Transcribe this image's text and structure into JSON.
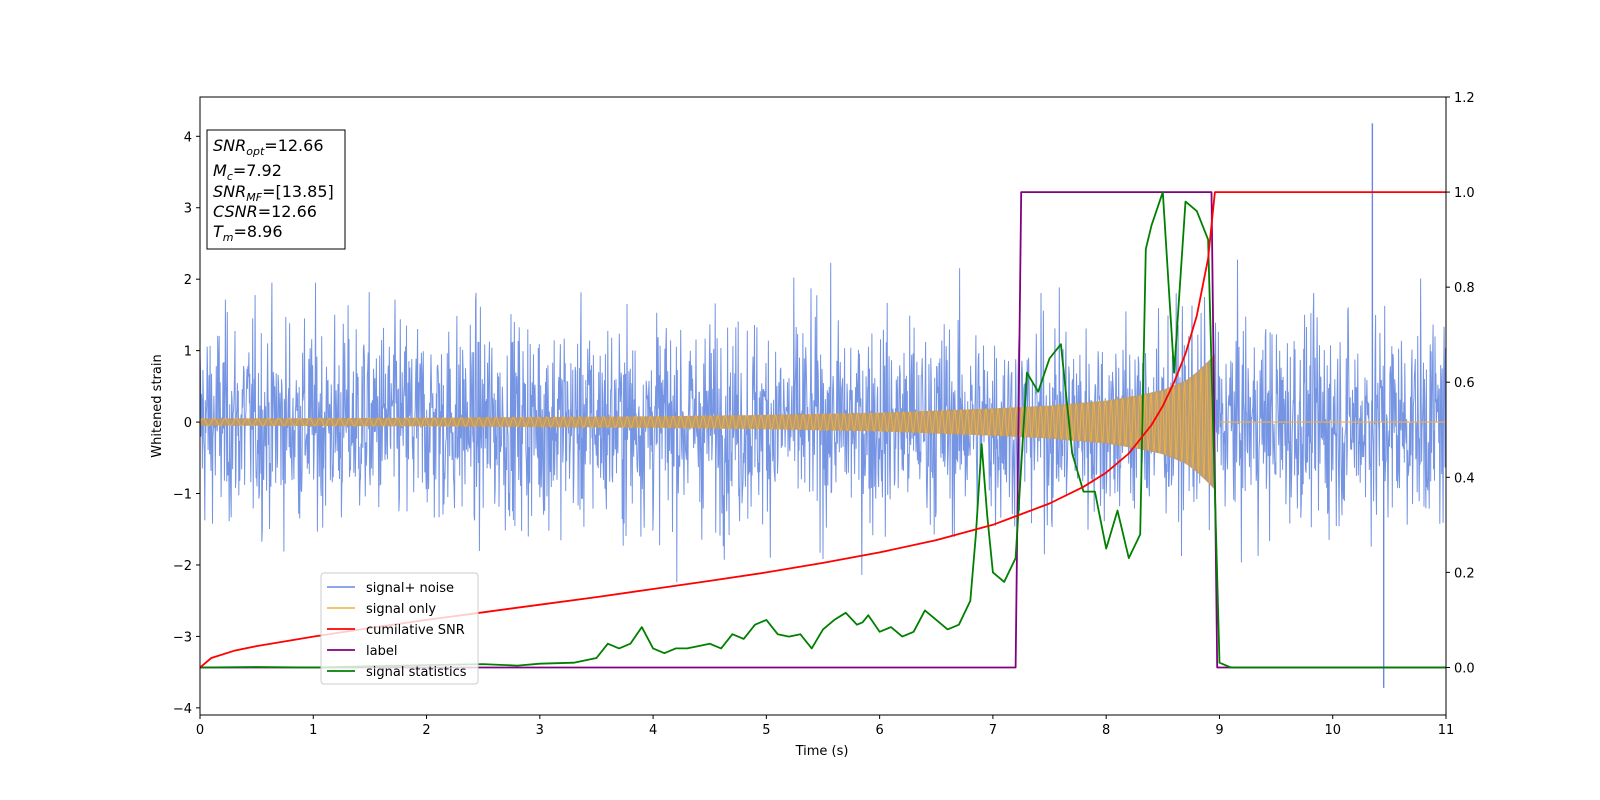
{
  "chart_data": {
    "type": "line",
    "xlabel": "Time (s)",
    "ylabel": "Whitened strain",
    "xlim": [
      0,
      11
    ],
    "ylim": [
      -4.1,
      4.55
    ],
    "y2lim": [
      -0.1,
      1.2
    ],
    "xticks": [
      0,
      1,
      2,
      3,
      4,
      5,
      6,
      7,
      8,
      9,
      10,
      11
    ],
    "yticks": [
      -4,
      -3,
      -2,
      -1,
      0,
      1,
      2,
      3,
      4
    ],
    "y2ticks": [
      0.0,
      0.2,
      0.4,
      0.6,
      0.8,
      1.0,
      1.2
    ],
    "info_box": [
      {
        "name": "SNR",
        "sub": "opt",
        "value": "=12.66"
      },
      {
        "name": "M",
        "sub": "c",
        "value": "=7.92"
      },
      {
        "name": "SNR",
        "sub": "MF",
        "value": "=[13.85]"
      },
      {
        "name": "CSNR",
        "sub": "",
        "value": "=12.66"
      },
      {
        "name": "T",
        "sub": "m",
        "value": "=8.96"
      }
    ],
    "legend": {
      "placement": "lower-left",
      "entries": [
        "signal+ noise",
        "signal only",
        "cumilative SNR",
        "label",
        "signal statistics"
      ]
    },
    "colors": {
      "signal_noise": "#6688e0",
      "signal_only": "#f0b040",
      "cumulative_snr": "#ff0000",
      "label": "#800080",
      "signal_statistics": "#008000"
    },
    "series": [
      {
        "name": "signal+ noise",
        "axis": "left",
        "kind": "noise_band",
        "x_range": [
          0,
          11
        ],
        "typical_amplitude": 2.3,
        "peak_max": 4.18,
        "peak_min": -3.72
      },
      {
        "name": "signal only",
        "axis": "left",
        "kind": "chirp_envelope",
        "x": [
          0.0,
          1.0,
          2.0,
          3.0,
          4.0,
          5.0,
          6.0,
          7.0,
          7.5,
          8.0,
          8.3,
          8.5,
          8.7,
          8.8,
          8.9,
          8.96,
          9.0,
          11.0
        ],
        "amplitude": [
          0.05,
          0.055,
          0.06,
          0.07,
          0.08,
          0.1,
          0.13,
          0.19,
          0.23,
          0.3,
          0.38,
          0.45,
          0.58,
          0.7,
          0.85,
          0.95,
          0.0,
          0.0
        ]
      },
      {
        "name": "cumilative SNR",
        "axis": "right",
        "x": [
          0.0,
          0.1,
          0.3,
          0.5,
          1.0,
          1.5,
          2.0,
          2.5,
          3.0,
          3.5,
          4.0,
          4.5,
          5.0,
          5.5,
          6.0,
          6.5,
          7.0,
          7.5,
          7.8,
          8.0,
          8.2,
          8.4,
          8.5,
          8.6,
          8.7,
          8.8,
          8.9,
          8.96,
          11.0
        ],
        "y": [
          0.0,
          0.02,
          0.035,
          0.045,
          0.065,
          0.083,
          0.1,
          0.116,
          0.132,
          0.148,
          0.165,
          0.182,
          0.2,
          0.22,
          0.242,
          0.268,
          0.3,
          0.345,
          0.38,
          0.41,
          0.45,
          0.51,
          0.55,
          0.6,
          0.66,
          0.74,
          0.86,
          1.0,
          1.0
        ]
      },
      {
        "name": "label",
        "axis": "right",
        "x": [
          0.0,
          7.2,
          7.25,
          8.93,
          8.98,
          11.0
        ],
        "y": [
          0.0,
          0.0,
          1.0,
          1.0,
          0.0,
          0.0
        ]
      },
      {
        "name": "signal statistics",
        "axis": "right",
        "x": [
          0.0,
          0.5,
          1.0,
          2.0,
          2.5,
          2.8,
          3.0,
          3.3,
          3.5,
          3.6,
          3.7,
          3.8,
          3.9,
          4.0,
          4.1,
          4.2,
          4.3,
          4.4,
          4.5,
          4.6,
          4.7,
          4.8,
          4.9,
          5.0,
          5.1,
          5.2,
          5.3,
          5.4,
          5.5,
          5.6,
          5.7,
          5.8,
          5.85,
          5.9,
          6.0,
          6.1,
          6.2,
          6.3,
          6.4,
          6.5,
          6.6,
          6.7,
          6.8,
          6.85,
          6.9,
          6.95,
          7.0,
          7.1,
          7.2,
          7.3,
          7.4,
          7.5,
          7.6,
          7.7,
          7.8,
          7.9,
          8.0,
          8.1,
          8.2,
          8.3,
          8.35,
          8.4,
          8.5,
          8.6,
          8.7,
          8.8,
          8.9,
          9.0,
          9.05,
          9.1,
          11.0
        ],
        "y": [
          0.0,
          0.001,
          0.0,
          0.005,
          0.007,
          0.004,
          0.008,
          0.01,
          0.02,
          0.05,
          0.04,
          0.05,
          0.085,
          0.04,
          0.03,
          0.04,
          0.04,
          0.045,
          0.05,
          0.04,
          0.07,
          0.06,
          0.09,
          0.1,
          0.07,
          0.065,
          0.07,
          0.04,
          0.08,
          0.1,
          0.115,
          0.09,
          0.095,
          0.11,
          0.075,
          0.085,
          0.065,
          0.075,
          0.12,
          0.1,
          0.08,
          0.09,
          0.14,
          0.28,
          0.47,
          0.32,
          0.2,
          0.18,
          0.23,
          0.62,
          0.58,
          0.65,
          0.68,
          0.45,
          0.37,
          0.37,
          0.25,
          0.33,
          0.23,
          0.28,
          0.88,
          0.93,
          1.0,
          0.62,
          0.98,
          0.96,
          0.9,
          0.01,
          0.005,
          0.0,
          0.0
        ]
      }
    ]
  }
}
